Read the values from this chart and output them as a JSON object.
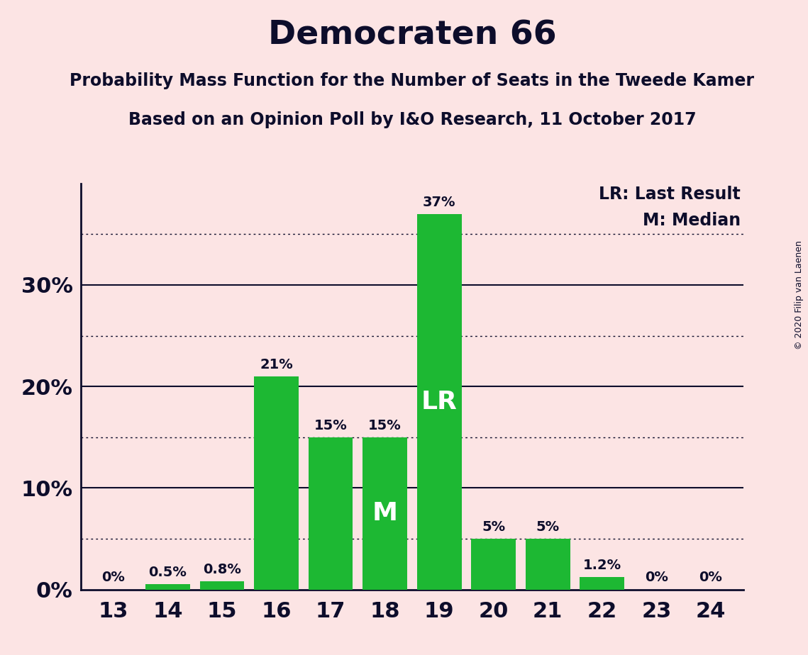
{
  "title": "Democraten 66",
  "subtitle1": "Probability Mass Function for the Number of Seats in the Tweede Kamer",
  "subtitle2": "Based on an Opinion Poll by I&O Research, 11 October 2017",
  "copyright": "© 2020 Filip van Laenen",
  "seats": [
    13,
    14,
    15,
    16,
    17,
    18,
    19,
    20,
    21,
    22,
    23,
    24
  ],
  "probabilities": [
    0.0,
    0.5,
    0.8,
    21.0,
    15.0,
    15.0,
    37.0,
    5.0,
    5.0,
    1.2,
    0.0,
    0.0
  ],
  "labels": [
    "0%",
    "0.5%",
    "0.8%",
    "21%",
    "15%",
    "15%",
    "37%",
    "5%",
    "5%",
    "1.2%",
    "0%",
    "0%"
  ],
  "bar_color": "#1db833",
  "background_color": "#fce4e4",
  "text_color": "#0d0d2b",
  "lr_seat": 19,
  "median_seat": 18,
  "lr_label": "LR",
  "median_label": "M",
  "legend_lr": "LR: Last Result",
  "legend_m": "M: Median",
  "yticks": [
    0,
    10,
    20,
    30
  ],
  "ytick_labels": [
    "0%",
    "10%",
    "20%",
    "30%"
  ],
  "ylim": [
    0,
    40
  ],
  "dotted_grid_values": [
    5,
    15,
    25,
    35
  ],
  "solid_grid_values": [
    10,
    20,
    30
  ]
}
